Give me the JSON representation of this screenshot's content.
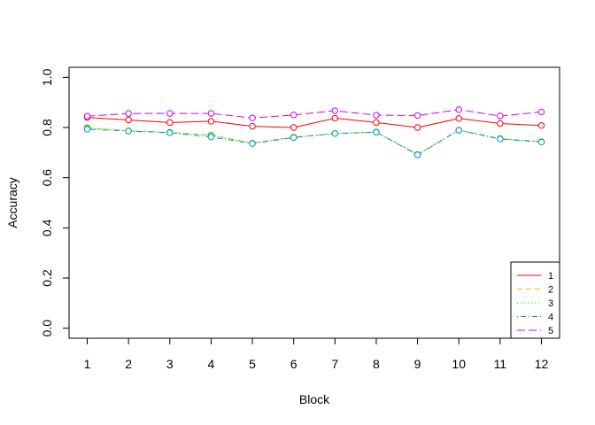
{
  "chart_data": {
    "type": "line",
    "xlabel": "Block",
    "ylabel": "Accuracy",
    "x": [
      1,
      2,
      3,
      4,
      5,
      6,
      7,
      8,
      9,
      10,
      11,
      12
    ],
    "xlim": [
      0.56,
      12.44
    ],
    "ylim": [
      -0.04,
      1.04
    ],
    "y_ticks": [
      0.0,
      0.2,
      0.4,
      0.6,
      0.8,
      1.0
    ],
    "y_tick_labels": [
      "0.0",
      "0.2",
      "0.4",
      "0.6",
      "0.8",
      "1.0"
    ],
    "legend_position": "bottom-right",
    "series": [
      {
        "name": "1",
        "color": "#ff0000",
        "dash": "",
        "values": [
          0.84,
          0.83,
          0.82,
          0.825,
          0.805,
          0.8,
          0.837,
          0.82,
          0.8,
          0.836,
          0.816,
          0.808
        ]
      },
      {
        "name": "2",
        "color": "#cccc00",
        "dash": "6,4",
        "values": [
          0.8,
          0.786,
          0.78,
          0.77,
          0.738,
          0.762,
          0.776,
          0.782,
          0.693,
          0.79,
          0.756,
          0.744
        ]
      },
      {
        "name": "3",
        "color": "#00cc44",
        "dash": "1,3",
        "values": [
          0.797,
          0.787,
          0.781,
          0.768,
          0.737,
          0.761,
          0.776,
          0.782,
          0.692,
          0.789,
          0.755,
          0.743
        ]
      },
      {
        "name": "4",
        "color": "#0099cc",
        "dash": "1,3,6,3",
        "values": [
          0.793,
          0.786,
          0.779,
          0.762,
          0.736,
          0.76,
          0.776,
          0.781,
          0.691,
          0.789,
          0.754,
          0.742
        ]
      },
      {
        "name": "5",
        "color": "#cc00ff",
        "dash": "9,4",
        "values": [
          0.845,
          0.856,
          0.856,
          0.856,
          0.838,
          0.85,
          0.867,
          0.849,
          0.848,
          0.871,
          0.846,
          0.862
        ]
      }
    ]
  }
}
